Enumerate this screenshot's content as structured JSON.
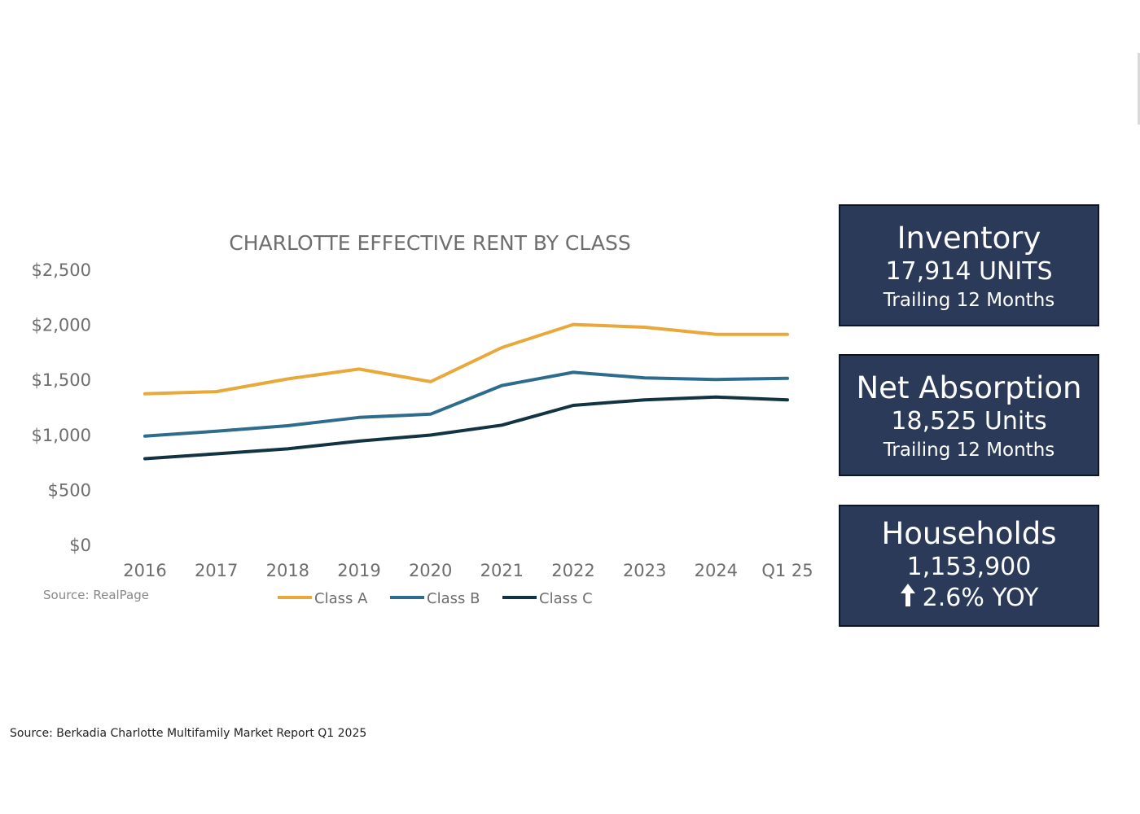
{
  "chart_data": {
    "type": "line",
    "title": "CHARLOTTE EFFECTIVE RENT BY CLASS",
    "source": "Source: RealPage",
    "categories": [
      "2016",
      "2017",
      "2018",
      "2019",
      "2020",
      "2021",
      "2022",
      "2023",
      "2024",
      "Q1 25"
    ],
    "y_ticks": [
      "$0",
      "$500",
      "$1,000",
      "$1,500",
      "$2,000",
      "$2,500"
    ],
    "ylim": [
      0,
      2500
    ],
    "grid": false,
    "legend_position": "bottom",
    "series": [
      {
        "name": "Class A",
        "color": "#e8a83a",
        "values": [
          1370,
          1390,
          1505,
          1595,
          1480,
          1790,
          2000,
          1975,
          1910,
          1910
        ]
      },
      {
        "name": "Class B",
        "color": "#2e6c8e",
        "values": [
          985,
          1030,
          1080,
          1155,
          1185,
          1445,
          1565,
          1515,
          1500,
          1510
        ]
      },
      {
        "name": "Class C",
        "color": "#123342",
        "values": [
          780,
          825,
          870,
          940,
          995,
          1085,
          1265,
          1315,
          1340,
          1315
        ]
      }
    ]
  },
  "stats": {
    "inventory": {
      "title": "Inventory",
      "value": "17,914 UNITS",
      "sub": "Trailing 12 Months"
    },
    "absorption": {
      "title": "Net Absorption",
      "value": "18,525 Units",
      "sub": "Trailing 12 Months"
    },
    "households": {
      "title": "Households",
      "value": "1,153,900",
      "change": "2.6% YOY",
      "change_icon": "up-arrow-icon"
    }
  },
  "footer": {
    "source": "Source: Berkadia Charlotte Multifamily Market Report Q1 2025"
  }
}
